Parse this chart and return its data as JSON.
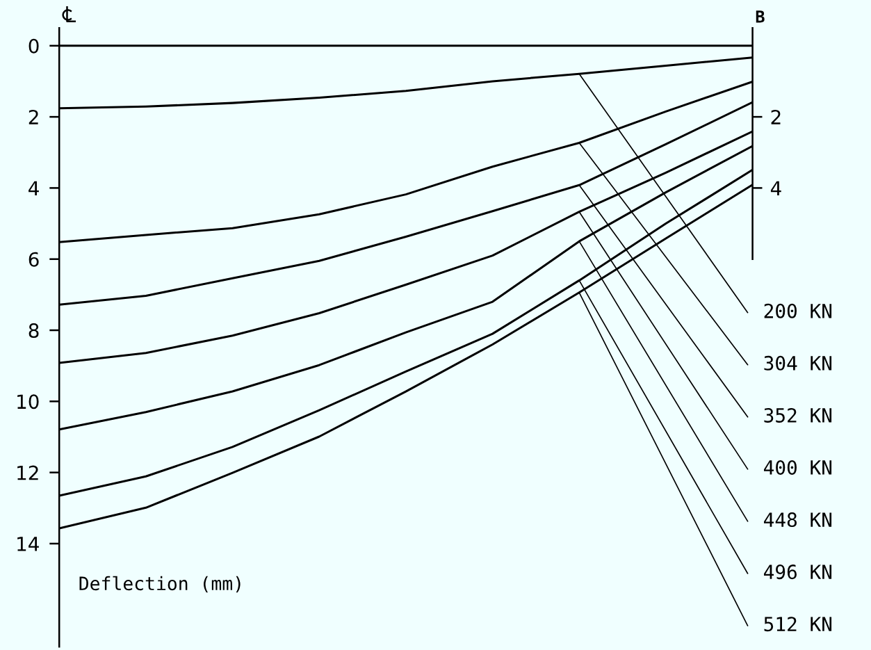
{
  "chart_data": {
    "type": "line",
    "categories": [
      null,
      null,
      null,
      null,
      null,
      null,
      null,
      null,
      null
    ],
    "series": [
      {
        "name": "200 KN",
        "color": "#000000",
        "values": [
          1.76,
          1.71,
          1.61,
          1.46,
          1.27,
          1.0,
          0.79,
          0.56,
          0.33
        ]
      },
      {
        "name": "304 KN",
        "color": "#000000",
        "values": [
          5.52,
          5.32,
          5.13,
          4.74,
          4.18,
          3.4,
          2.73,
          1.85,
          1.01
        ]
      },
      {
        "name": "352 KN",
        "color": "#000000",
        "values": [
          7.28,
          7.03,
          6.54,
          6.05,
          5.37,
          4.65,
          3.92,
          2.77,
          1.59
        ]
      },
      {
        "name": "400 KN",
        "color": "#000000",
        "values": [
          8.92,
          8.64,
          8.15,
          7.52,
          6.72,
          5.9,
          4.67,
          3.57,
          2.41
        ]
      },
      {
        "name": "448 KN",
        "color": "#000000",
        "values": [
          10.79,
          10.3,
          9.72,
          8.98,
          8.06,
          7.2,
          5.5,
          4.12,
          2.82
        ]
      },
      {
        "name": "496 KN",
        "color": "#000000",
        "values": [
          12.65,
          12.11,
          11.28,
          10.25,
          9.16,
          8.1,
          6.6,
          5.0,
          3.49
        ]
      },
      {
        "name": "512 KN",
        "color": "#000000",
        "values": [
          13.57,
          12.99,
          12.01,
          10.99,
          9.72,
          8.4,
          6.94,
          5.42,
          3.91
        ]
      }
    ],
    "ylim": [
      16.9,
      -0.5
    ],
    "yticks": [
      0,
      2,
      4,
      6,
      8,
      10,
      12,
      14
    ],
    "y2lim": [
      6,
      -0.5
    ],
    "y2ticks": [
      2,
      4
    ],
    "ref_lines": [
      {
        "axis": "y",
        "value": 0,
        "color": "#000000"
      }
    ],
    "annotations": [
      "B",
      "Deflection (mm)"
    ],
    "legend": false,
    "grid": false,
    "marker": "none",
    "line_style": "solid"
  }
}
